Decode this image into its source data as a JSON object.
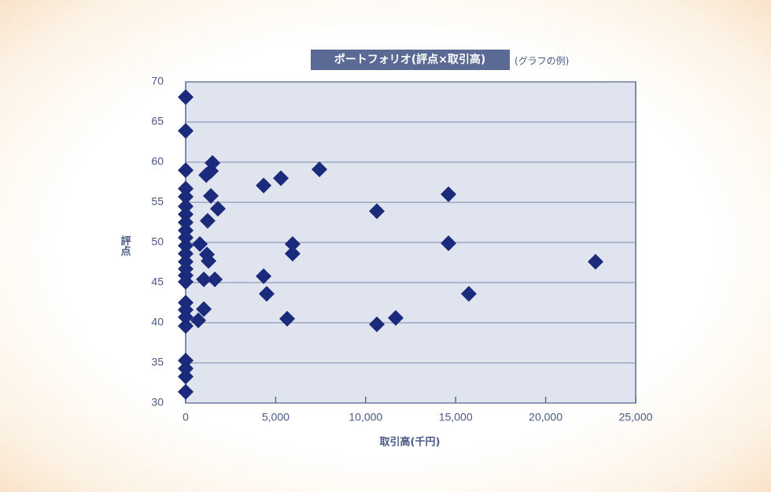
{
  "chart_data": {
    "type": "scatter",
    "title": "ポートフォリオ(評点×取引高)",
    "subtitle": "(グラフの例)",
    "x_label": "取引高(千円)",
    "y_label": "評点",
    "color": "#1b2a7a",
    "grid": true,
    "xlim": [
      0,
      25000
    ],
    "ylim": [
      30,
      70
    ],
    "xticks": [
      0,
      {
        "value": 5000,
        "label": "5,000"
      },
      {
        "value": 10000,
        "label": "10,000"
      },
      {
        "value": 15000,
        "label": "15,000"
      },
      {
        "value": 20000,
        "label": "20,000"
      },
      {
        "value": 25000,
        "label": "25,000"
      }
    ],
    "yticks": [
      30,
      35,
      40,
      45,
      50,
      55,
      60,
      65,
      70
    ],
    "x": [
      0,
      0,
      0,
      0,
      0,
      0,
      0,
      0,
      0,
      0,
      0,
      0,
      0,
      0,
      0,
      0,
      0,
      0,
      0,
      0,
      0,
      0,
      0,
      0,
      1490,
      1400,
      1140,
      1400,
      1790,
      1220,
      790,
      1180,
      1270,
      1010,
      1620,
      1010,
      700,
      4330,
      5290,
      7430,
      5940,
      5940,
      4330,
      4500,
      5640,
      10620,
      10620,
      11670,
      14600,
      14600,
      15730,
      22770
    ],
    "values": [
      68.1,
      63.9,
      59,
      56.7,
      55.7,
      54.5,
      53.5,
      52.5,
      51.5,
      50.6,
      49.6,
      48.6,
      47.6,
      46.7,
      45.9,
      45.1,
      42.5,
      41.6,
      40.7,
      39.6,
      35.3,
      34.3,
      33.3,
      31.4,
      59.9,
      58.9,
      58.4,
      55.8,
      54.2,
      52.7,
      49.8,
      48.5,
      47.7,
      45.4,
      45.4,
      41.7,
      40.3,
      57.1,
      58,
      59.1,
      49.8,
      48.6,
      45.8,
      43.6,
      40.5,
      53.9,
      39.8,
      40.6,
      56,
      49.9,
      43.6,
      47.6
    ]
  }
}
